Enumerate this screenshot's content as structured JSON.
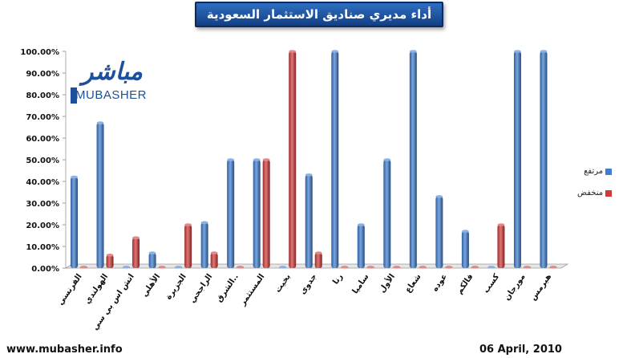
{
  "title": "أداء مديري صناديق الاستثمار السعودية",
  "footer": {
    "website": "www.mubasher.info",
    "date": "06 April, 2010"
  },
  "logo": {
    "arabic": "مباشر",
    "english": "MUBASHER"
  },
  "colors": {
    "up": "#3f7fd2",
    "down": "#d23a3a",
    "title_bg": "#1d4f9c"
  },
  "chart_data": {
    "type": "bar",
    "categories": [
      "الفرنسي",
      "الهولندي",
      "اتش اس بي سي",
      "الأهلي",
      "الجزيرة",
      "الراجحي",
      "الشرق..",
      "المستثمر",
      "بخيت",
      "جدوى",
      "رنا",
      "ساميا",
      "الأول",
      "شعاع",
      "عوده",
      "فالكم",
      "كسب",
      "مورجان",
      "هيرمس"
    ],
    "series": [
      {
        "name": "مرتفع",
        "color": "#3f7fd2",
        "values": [
          42,
          67,
          0,
          7,
          0,
          21,
          50,
          50,
          0,
          43,
          100,
          20,
          50,
          100,
          33,
          17,
          0,
          100,
          100
        ]
      },
      {
        "name": "منخفض",
        "color": "#d23a3a",
        "values": [
          0,
          6,
          14,
          0,
          20,
          7,
          0,
          50,
          100,
          7,
          0,
          0,
          0,
          0,
          0,
          0,
          20,
          0,
          0
        ]
      }
    ],
    "yticks": [
      "0.00%",
      "10.00%",
      "20.00%",
      "30.00%",
      "40.00%",
      "50.00%",
      "60.00%",
      "70.00%",
      "80.00%",
      "90.00%",
      "100.00%"
    ],
    "ylim": [
      0,
      100
    ],
    "grid": false,
    "legend": "right"
  }
}
